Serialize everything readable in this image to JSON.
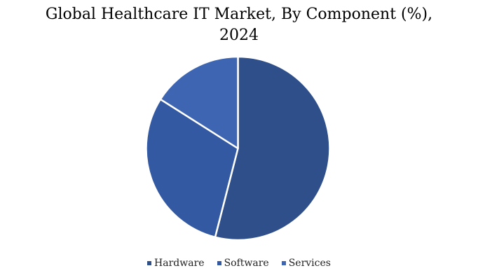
{
  "chart_data": {
    "type": "pie",
    "title_line1": "Global Healthcare IT Market, By Component (%),",
    "title_line2": "2024",
    "categories": [
      "Hardware",
      "Software",
      "Services"
    ],
    "values": [
      54,
      30,
      16
    ],
    "colors": [
      "#2E4F8A",
      "#3459A3",
      "#3D65B1"
    ],
    "legend_position": "bottom"
  }
}
